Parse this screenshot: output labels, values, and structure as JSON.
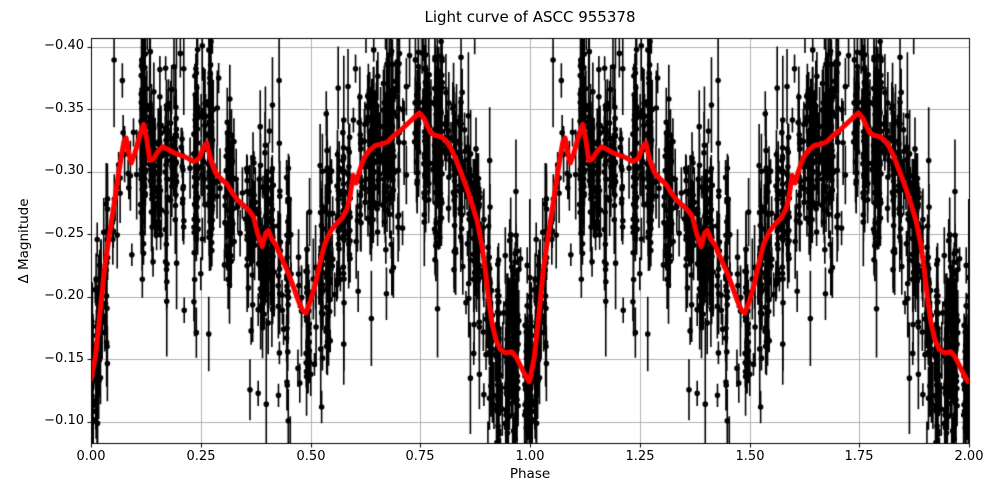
{
  "figure": {
    "title": "Light curve of ASCC 955378"
  },
  "chart_data": {
    "type": "scatter",
    "title": "Light curve of ASCC 955378",
    "xlabel": "Phase",
    "ylabel": "Δ Magnitude",
    "x_range": [
      0,
      2
    ],
    "y_axis": {
      "inverted": true,
      "top": -0.407,
      "bottom": -0.083
    },
    "x_tick_values": [
      0,
      0.25,
      0.5,
      0.75,
      1.0,
      1.25,
      1.5,
      1.75,
      2.0
    ],
    "x_ticks": [
      "0.00",
      "0.25",
      "0.50",
      "0.75",
      "1.00",
      "1.25",
      "1.50",
      "1.75",
      "2.00"
    ],
    "y_tick_values": [
      -0.4,
      -0.35,
      -0.3,
      -0.25,
      -0.2,
      -0.15,
      -0.1
    ],
    "y_ticks": [
      "−0.40",
      "−0.35",
      "−0.30",
      "−0.25",
      "−0.20",
      "−0.15",
      "−0.10"
    ],
    "grid": true,
    "grid_color": "#b0b0b0",
    "colors": {
      "points": "#000000",
      "trend": "#ff0000",
      "background": "#ffffff"
    },
    "phase_fold_duplicated_cycles": [
      0,
      1
    ],
    "trend_line_width": 5,
    "trend_cycle": [
      [
        0.0,
        -0.134
      ],
      [
        0.01,
        -0.152
      ],
      [
        0.02,
        -0.185
      ],
      [
        0.03,
        -0.22
      ],
      [
        0.04,
        -0.245
      ],
      [
        0.05,
        -0.268
      ],
      [
        0.06,
        -0.292
      ],
      [
        0.068,
        -0.31
      ],
      [
        0.075,
        -0.324
      ],
      [
        0.08,
        -0.327
      ],
      [
        0.087,
        -0.313
      ],
      [
        0.092,
        -0.307
      ],
      [
        0.1,
        -0.315
      ],
      [
        0.108,
        -0.325
      ],
      [
        0.115,
        -0.333
      ],
      [
        0.12,
        -0.338
      ],
      [
        0.127,
        -0.326
      ],
      [
        0.134,
        -0.309
      ],
      [
        0.142,
        -0.31
      ],
      [
        0.152,
        -0.316
      ],
      [
        0.163,
        -0.32
      ],
      [
        0.175,
        -0.318
      ],
      [
        0.19,
        -0.315
      ],
      [
        0.205,
        -0.313
      ],
      [
        0.22,
        -0.311
      ],
      [
        0.235,
        -0.308
      ],
      [
        0.247,
        -0.311
      ],
      [
        0.257,
        -0.32
      ],
      [
        0.264,
        -0.323
      ],
      [
        0.273,
        -0.309
      ],
      [
        0.284,
        -0.299
      ],
      [
        0.297,
        -0.294
      ],
      [
        0.31,
        -0.29
      ],
      [
        0.322,
        -0.283
      ],
      [
        0.335,
        -0.277
      ],
      [
        0.348,
        -0.273
      ],
      [
        0.36,
        -0.269
      ],
      [
        0.37,
        -0.264
      ],
      [
        0.38,
        -0.25
      ],
      [
        0.39,
        -0.24
      ],
      [
        0.398,
        -0.251
      ],
      [
        0.404,
        -0.253
      ],
      [
        0.412,
        -0.246
      ],
      [
        0.422,
        -0.241
      ],
      [
        0.434,
        -0.231
      ],
      [
        0.447,
        -0.221
      ],
      [
        0.46,
        -0.209
      ],
      [
        0.472,
        -0.197
      ],
      [
        0.482,
        -0.189
      ],
      [
        0.49,
        -0.187
      ],
      [
        0.5,
        -0.197
      ],
      [
        0.511,
        -0.21
      ],
      [
        0.521,
        -0.226
      ],
      [
        0.532,
        -0.242
      ],
      [
        0.545,
        -0.252
      ],
      [
        0.558,
        -0.258
      ],
      [
        0.572,
        -0.263
      ],
      [
        0.583,
        -0.27
      ],
      [
        0.59,
        -0.28
      ],
      [
        0.597,
        -0.297
      ],
      [
        0.604,
        -0.291
      ],
      [
        0.612,
        -0.301
      ],
      [
        0.622,
        -0.311
      ],
      [
        0.634,
        -0.317
      ],
      [
        0.648,
        -0.321
      ],
      [
        0.662,
        -0.322
      ],
      [
        0.676,
        -0.324
      ],
      [
        0.69,
        -0.329
      ],
      [
        0.705,
        -0.333
      ],
      [
        0.72,
        -0.338
      ],
      [
        0.735,
        -0.343
      ],
      [
        0.748,
        -0.347
      ],
      [
        0.758,
        -0.343
      ],
      [
        0.767,
        -0.336
      ],
      [
        0.774,
        -0.331
      ],
      [
        0.785,
        -0.329
      ],
      [
        0.798,
        -0.328
      ],
      [
        0.808,
        -0.325
      ],
      [
        0.818,
        -0.32
      ],
      [
        0.83,
        -0.311
      ],
      [
        0.842,
        -0.3
      ],
      [
        0.855,
        -0.288
      ],
      [
        0.868,
        -0.274
      ],
      [
        0.88,
        -0.26
      ],
      [
        0.89,
        -0.242
      ],
      [
        0.898,
        -0.222
      ],
      [
        0.905,
        -0.2
      ],
      [
        0.913,
        -0.18
      ],
      [
        0.922,
        -0.166
      ],
      [
        0.932,
        -0.158
      ],
      [
        0.945,
        -0.155
      ],
      [
        0.958,
        -0.156
      ],
      [
        0.968,
        -0.152
      ],
      [
        0.978,
        -0.145
      ],
      [
        0.988,
        -0.138
      ],
      [
        0.998,
        -0.132
      ]
    ],
    "scatter": {
      "seed": 1337,
      "clusters_per_cycle": 95,
      "cluster_size_min": 4,
      "cluster_size_max": 30,
      "cluster_phase_spread_max": 0.0055,
      "singles_per_cycle": 280,
      "noise_sigma_min": 0.022,
      "noise_sigma_max": 0.044,
      "down_tail_fraction": 0.22,
      "down_tail_max": 0.055,
      "up_tail_fraction": 0.08,
      "up_tail_max": 0.044,
      "big_outlier_fraction": 0.03,
      "big_outlier_min": 0.06,
      "big_outlier_max": 0.14,
      "err_min": 0.009,
      "err_max": 0.037,
      "marker_radius": 2.8,
      "errorbar_line_width": 1.6
    }
  }
}
